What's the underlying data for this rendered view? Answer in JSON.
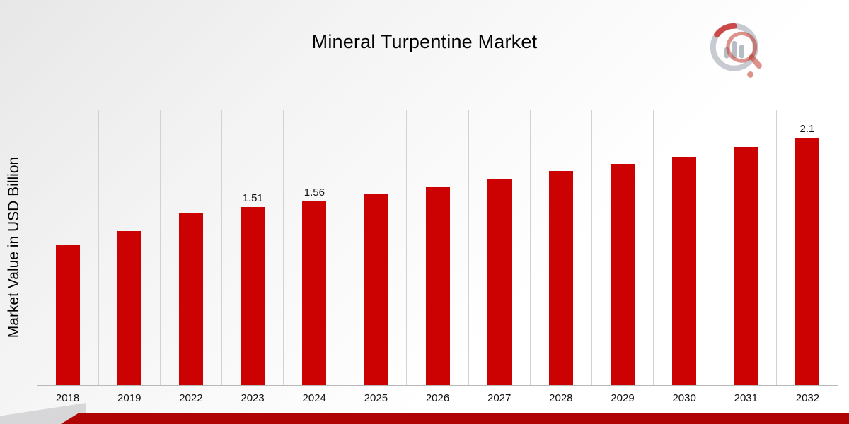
{
  "title": "Mineral Turpentine Market",
  "y_axis_label": "Market Value in USD Billion",
  "colors": {
    "bar": "#CC0202",
    "footer": "#B00404",
    "footer_gray": "#D7D7D9",
    "gridline": "#D2D2D2",
    "background_top": "#E7E7E7",
    "background_bottom": "#FFFFFF"
  },
  "logo": {
    "name": "market-research-chart-logo"
  },
  "chart_data": {
    "type": "bar",
    "title": "Mineral Turpentine Market",
    "xlabel": "",
    "ylabel": "Market Value in USD Billion",
    "ylim": [
      0,
      2.34
    ],
    "grid": "vertical-only",
    "legend": "none",
    "categories": [
      "2018",
      "2019",
      "2022",
      "2023",
      "2024",
      "2025",
      "2026",
      "2027",
      "2028",
      "2029",
      "2030",
      "2031",
      "2032"
    ],
    "values": [
      1.19,
      1.31,
      1.46,
      1.51,
      1.56,
      1.62,
      1.68,
      1.75,
      1.82,
      1.88,
      1.94,
      2.02,
      2.1
    ],
    "data_labels": {
      "2023": "1.51",
      "2024": "1.56",
      "2032": "2.1"
    },
    "points": [
      {
        "year": "2018",
        "value": 1.19
      },
      {
        "year": "2019",
        "value": 1.31
      },
      {
        "year": "2022",
        "value": 1.46
      },
      {
        "year": "2023",
        "value": 1.51,
        "label": "1.51"
      },
      {
        "year": "2024",
        "value": 1.56,
        "label": "1.56"
      },
      {
        "year": "2025",
        "value": 1.62
      },
      {
        "year": "2026",
        "value": 1.68
      },
      {
        "year": "2027",
        "value": 1.75
      },
      {
        "year": "2028",
        "value": 1.82
      },
      {
        "year": "2029",
        "value": 1.88
      },
      {
        "year": "2030",
        "value": 1.94
      },
      {
        "year": "2031",
        "value": 2.02
      },
      {
        "year": "2032",
        "value": 2.1,
        "label": "2.1"
      }
    ]
  }
}
